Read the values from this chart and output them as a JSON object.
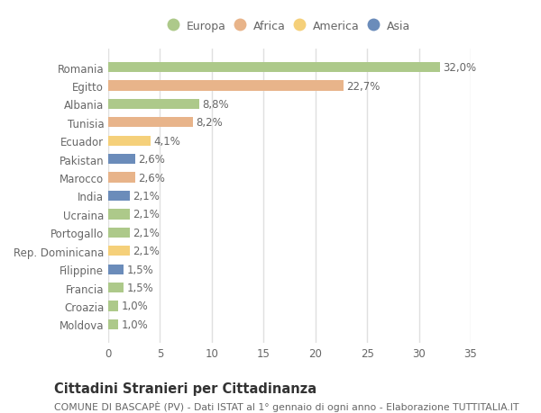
{
  "title": "Cittadini Stranieri per Cittadinanza",
  "subtitle": "COMUNE DI BASCAPÈ (PV) - Dati ISTAT al 1° gennaio di ogni anno - Elaborazione TUTTITALIA.IT",
  "categories": [
    "Romania",
    "Egitto",
    "Albania",
    "Tunisia",
    "Ecuador",
    "Pakistan",
    "Marocco",
    "India",
    "Ucraina",
    "Portogallo",
    "Rep. Dominicana",
    "Filippine",
    "Francia",
    "Croazia",
    "Moldova"
  ],
  "values": [
    32.0,
    22.7,
    8.8,
    8.2,
    4.1,
    2.6,
    2.6,
    2.1,
    2.1,
    2.1,
    2.1,
    1.5,
    1.5,
    1.0,
    1.0
  ],
  "labels": [
    "32,0%",
    "22,7%",
    "8,8%",
    "8,2%",
    "4,1%",
    "2,6%",
    "2,6%",
    "2,1%",
    "2,1%",
    "2,1%",
    "2,1%",
    "1,5%",
    "1,5%",
    "1,0%",
    "1,0%"
  ],
  "colors": [
    "#adc98a",
    "#e8b48a",
    "#adc98a",
    "#e8b48a",
    "#f5d07a",
    "#6b8cba",
    "#e8b48a",
    "#6b8cba",
    "#adc98a",
    "#adc98a",
    "#f5d07a",
    "#6b8cba",
    "#adc98a",
    "#adc98a",
    "#adc98a"
  ],
  "legend_labels": [
    "Europa",
    "Africa",
    "America",
    "Asia"
  ],
  "legend_colors": [
    "#adc98a",
    "#e8b48a",
    "#f5d07a",
    "#6b8cba"
  ],
  "xlim": [
    0,
    35
  ],
  "xticks": [
    0,
    5,
    10,
    15,
    20,
    25,
    30,
    35
  ],
  "background_color": "#ffffff",
  "grid_color": "#e0e0e0",
  "bar_height": 0.55,
  "label_fontsize": 8.5,
  "tick_fontsize": 8.5,
  "title_fontsize": 10.5,
  "subtitle_fontsize": 7.8
}
